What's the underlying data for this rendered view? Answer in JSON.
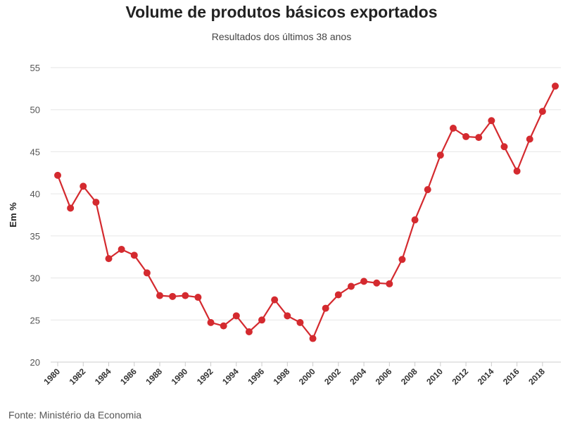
{
  "title": "Volume de produtos básicos exportados",
  "subtitle": "Resultados dos últimos 38 anos",
  "source": "Fonte: Ministério da Economia",
  "colors": {
    "series": "#d42a2f",
    "grid": "#e6e6e6",
    "axis": "#cccccc"
  },
  "chart_data": {
    "type": "line",
    "title": "Volume de produtos básicos exportados",
    "subtitle": "Resultados dos últimos 38 anos",
    "xlabel": "",
    "ylabel": "Em %",
    "ylim": [
      20,
      55
    ],
    "yticks": [
      "20",
      "25",
      "30",
      "35",
      "40",
      "45",
      "50",
      "55"
    ],
    "xtick_labels": [
      "1980",
      "1982",
      "1984",
      "1986",
      "1988",
      "1990",
      "1992",
      "1994",
      "1996",
      "1998",
      "2000",
      "2002",
      "2004",
      "2006",
      "2008",
      "2010",
      "2012",
      "2014",
      "2016",
      "2018"
    ],
    "grid": true,
    "legend": "none",
    "x": [
      1980,
      1981,
      1982,
      1983,
      1984,
      1985,
      1986,
      1987,
      1988,
      1989,
      1990,
      1991,
      1992,
      1993,
      1994,
      1995,
      1996,
      1997,
      1998,
      1999,
      2000,
      2001,
      2002,
      2003,
      2004,
      2005,
      2006,
      2007,
      2008,
      2009,
      2010,
      2011,
      2012,
      2013,
      2014,
      2015,
      2016,
      2017,
      2018,
      2019
    ],
    "series": [
      {
        "values": [
          42.2,
          38.3,
          40.9,
          39.0,
          32.3,
          33.4,
          32.7,
          30.6,
          27.9,
          27.8,
          27.9,
          27.7,
          24.7,
          24.3,
          25.5,
          23.6,
          25.0,
          27.4,
          25.5,
          24.7,
          22.8,
          26.4,
          28.0,
          29.0,
          29.6,
          29.4,
          29.3,
          32.2,
          36.9,
          40.5,
          44.6,
          47.8,
          46.8,
          46.7,
          48.7,
          45.6,
          42.7,
          46.5,
          49.8,
          52.8
        ]
      }
    ]
  }
}
